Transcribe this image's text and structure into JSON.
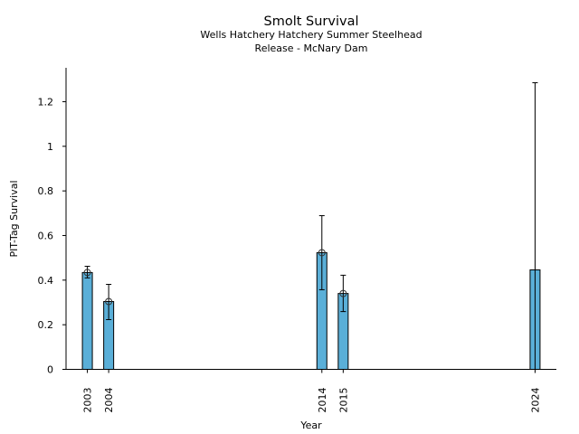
{
  "chart_data": {
    "type": "bar",
    "title": "Smolt Survival",
    "subtitle": [
      "Wells Hatchery Hatchery Summer Steelhead",
      "Release - McNary Dam"
    ],
    "xlabel": "Year",
    "ylabel": "PIT-Tag Survival",
    "xlim": [
      2002,
      2025
    ],
    "ylim": [
      0,
      1.35
    ],
    "yticks": [
      0,
      0.2,
      0.4,
      0.6,
      0.8,
      1,
      1.2
    ],
    "ytick_labels": [
      "0",
      "0.2",
      "0.4",
      "0.6",
      "0.8",
      "1",
      "1.2"
    ],
    "x": [
      2003,
      2004,
      2014,
      2015,
      2024
    ],
    "xtick_labels": [
      "2003",
      "2004",
      "2014",
      "2015",
      "2024"
    ],
    "values": [
      0.434,
      0.304,
      0.523,
      0.34,
      0.446
    ],
    "err_low": [
      0.41,
      0.223,
      0.357,
      0.259,
      0
    ],
    "err_high": [
      0.462,
      0.381,
      0.689,
      0.422,
      1.285
    ],
    "marker": [
      true,
      true,
      true,
      true,
      false
    ],
    "bar_color": "#5aafd8",
    "grid": false
  }
}
